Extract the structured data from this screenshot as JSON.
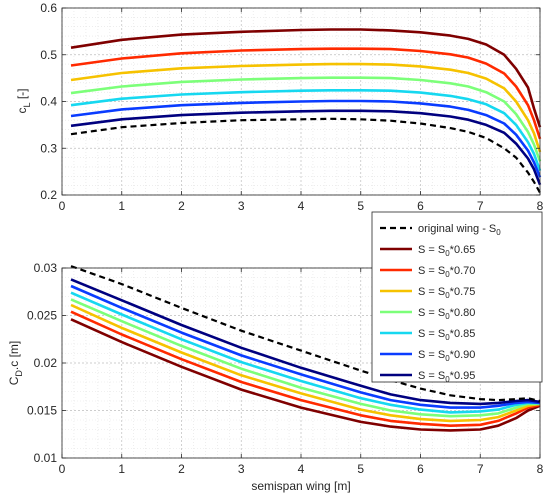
{
  "chart_data": [
    {
      "type": "line",
      "ylabel_main": "c",
      "ylabel_sub": "L",
      "ylabel_suffix": " [-]",
      "xlim": [
        0,
        8
      ],
      "ylim": [
        0.2,
        0.6
      ],
      "xticks": [
        0,
        1,
        2,
        3,
        4,
        5,
        6,
        7,
        8
      ],
      "yticks": [
        0.2,
        0.3,
        0.4,
        0.5,
        0.6
      ],
      "grid": "major and minor",
      "x": [
        0.15,
        1,
        2,
        3,
        4,
        4.5,
        5,
        5.5,
        6,
        6.5,
        6.8,
        7.1,
        7.4,
        7.6,
        7.8,
        7.9,
        8.0
      ],
      "series": [
        {
          "key": "orig",
          "color": "#000000",
          "dashed": true,
          "values": [
            0.33,
            0.345,
            0.354,
            0.36,
            0.362,
            0.363,
            0.362,
            0.359,
            0.353,
            0.343,
            0.335,
            0.322,
            0.3,
            0.28,
            0.248,
            0.228,
            0.205
          ]
        },
        {
          "key": "s065",
          "color": "#7f0000",
          "values": [
            0.515,
            0.532,
            0.543,
            0.549,
            0.553,
            0.554,
            0.554,
            0.552,
            0.548,
            0.541,
            0.534,
            0.522,
            0.5,
            0.47,
            0.43,
            0.385,
            0.345
          ]
        },
        {
          "key": "s070",
          "color": "#ff2a00",
          "values": [
            0.477,
            0.492,
            0.503,
            0.509,
            0.512,
            0.513,
            0.513,
            0.512,
            0.508,
            0.501,
            0.494,
            0.481,
            0.46,
            0.432,
            0.392,
            0.36,
            0.32
          ]
        },
        {
          "key": "s075",
          "color": "#f6c200",
          "values": [
            0.446,
            0.461,
            0.471,
            0.476,
            0.479,
            0.48,
            0.48,
            0.479,
            0.475,
            0.468,
            0.461,
            0.449,
            0.428,
            0.4,
            0.36,
            0.332,
            0.292
          ]
        },
        {
          "key": "s080",
          "color": "#7cff79",
          "values": [
            0.418,
            0.432,
            0.442,
            0.447,
            0.45,
            0.451,
            0.451,
            0.45,
            0.446,
            0.439,
            0.432,
            0.42,
            0.4,
            0.373,
            0.335,
            0.308,
            0.272
          ]
        },
        {
          "key": "s085",
          "color": "#16d8f0",
          "values": [
            0.392,
            0.406,
            0.415,
            0.42,
            0.423,
            0.424,
            0.424,
            0.423,
            0.419,
            0.412,
            0.405,
            0.394,
            0.375,
            0.35,
            0.313,
            0.288,
            0.252
          ]
        },
        {
          "key": "s090",
          "color": "#0a3cff",
          "values": [
            0.369,
            0.383,
            0.392,
            0.397,
            0.4,
            0.401,
            0.401,
            0.4,
            0.396,
            0.389,
            0.382,
            0.371,
            0.353,
            0.329,
            0.295,
            0.27,
            0.238
          ]
        },
        {
          "key": "s095",
          "color": "#00007f",
          "values": [
            0.348,
            0.362,
            0.371,
            0.376,
            0.379,
            0.38,
            0.38,
            0.379,
            0.375,
            0.368,
            0.361,
            0.35,
            0.333,
            0.31,
            0.278,
            0.255,
            0.222
          ]
        }
      ]
    },
    {
      "type": "line",
      "ylabel_main": "C",
      "ylabel_sub": "D",
      "ylabel_suffix": ".c [m]",
      "xlabel": "semispan wing [m]",
      "xlim": [
        0,
        8
      ],
      "ylim": [
        0.01,
        0.03
      ],
      "xticks": [
        0,
        1,
        2,
        3,
        4,
        5,
        6,
        7,
        8
      ],
      "yticks": [
        0.01,
        0.015,
        0.02,
        0.025,
        0.03
      ],
      "grid": "major and minor",
      "x": [
        0.15,
        1,
        2,
        3,
        4,
        5,
        5.5,
        6,
        6.5,
        7,
        7.3,
        7.6,
        7.8,
        8.0
      ],
      "series": [
        {
          "key": "orig",
          "color": "#000000",
          "dashed": true,
          "values": [
            0.0302,
            0.0283,
            0.0258,
            0.0234,
            0.0213,
            0.0192,
            0.0182,
            0.0173,
            0.0166,
            0.0162,
            0.0161,
            0.0162,
            0.0163,
            0.016
          ]
        },
        {
          "key": "s065",
          "color": "#7f0000",
          "values": [
            0.0246,
            0.0222,
            0.0196,
            0.0172,
            0.0153,
            0.0138,
            0.0133,
            0.013,
            0.0129,
            0.013,
            0.0134,
            0.0142,
            0.015,
            0.0155
          ]
        },
        {
          "key": "s070",
          "color": "#ff2a00",
          "values": [
            0.0254,
            0.023,
            0.0204,
            0.018,
            0.0161,
            0.0145,
            0.0139,
            0.0136,
            0.0134,
            0.0135,
            0.0139,
            0.0147,
            0.0153,
            0.0156
          ]
        },
        {
          "key": "s075",
          "color": "#f6c200",
          "values": [
            0.0261,
            0.0237,
            0.0211,
            0.0187,
            0.0168,
            0.0151,
            0.0145,
            0.0141,
            0.0139,
            0.014,
            0.0143,
            0.015,
            0.0155,
            0.0157
          ]
        },
        {
          "key": "s080",
          "color": "#7cff79",
          "values": [
            0.0267,
            0.0244,
            0.0218,
            0.0194,
            0.0174,
            0.0157,
            0.015,
            0.0146,
            0.0144,
            0.0145,
            0.0147,
            0.0153,
            0.0157,
            0.0157
          ]
        },
        {
          "key": "s085",
          "color": "#16d8f0",
          "values": [
            0.0274,
            0.0251,
            0.0225,
            0.0201,
            0.0181,
            0.0163,
            0.0156,
            0.0151,
            0.0148,
            0.0149,
            0.0151,
            0.0156,
            0.0158,
            0.0158
          ]
        },
        {
          "key": "s090",
          "color": "#0a3cff",
          "values": [
            0.0281,
            0.0258,
            0.0232,
            0.0208,
            0.0188,
            0.0169,
            0.0161,
            0.0156,
            0.0153,
            0.0153,
            0.0155,
            0.0158,
            0.0159,
            0.0158
          ]
        },
        {
          "key": "s095",
          "color": "#00007f",
          "values": [
            0.0288,
            0.0266,
            0.024,
            0.0216,
            0.0195,
            0.0176,
            0.0167,
            0.0161,
            0.0158,
            0.0157,
            0.0158,
            0.016,
            0.0161,
            0.0159
          ]
        }
      ]
    }
  ],
  "legend": {
    "placement": "right, between panels",
    "entries": [
      {
        "key": "orig",
        "text": "original wing - S",
        "sub": "0",
        "after": "",
        "color": "#000000",
        "dashed": true
      },
      {
        "key": "s065",
        "text": "S = S",
        "sub": "0",
        "after": "*0.65",
        "color": "#7f0000"
      },
      {
        "key": "s070",
        "text": "S = S",
        "sub": "0",
        "after": "*0.70",
        "color": "#ff2a00"
      },
      {
        "key": "s075",
        "text": "S = S",
        "sub": "0",
        "after": "*0.75",
        "color": "#f6c200"
      },
      {
        "key": "s080",
        "text": "S = S",
        "sub": "0",
        "after": "*0.80",
        "color": "#7cff79"
      },
      {
        "key": "s085",
        "text": "S = S",
        "sub": "0",
        "after": "*0.85",
        "color": "#16d8f0"
      },
      {
        "key": "s090",
        "text": "S = S",
        "sub": "0",
        "after": "*0.90",
        "color": "#0a3cff"
      },
      {
        "key": "s095",
        "text": "S = S",
        "sub": "0",
        "after": "*0.95",
        "color": "#00007f"
      }
    ]
  }
}
